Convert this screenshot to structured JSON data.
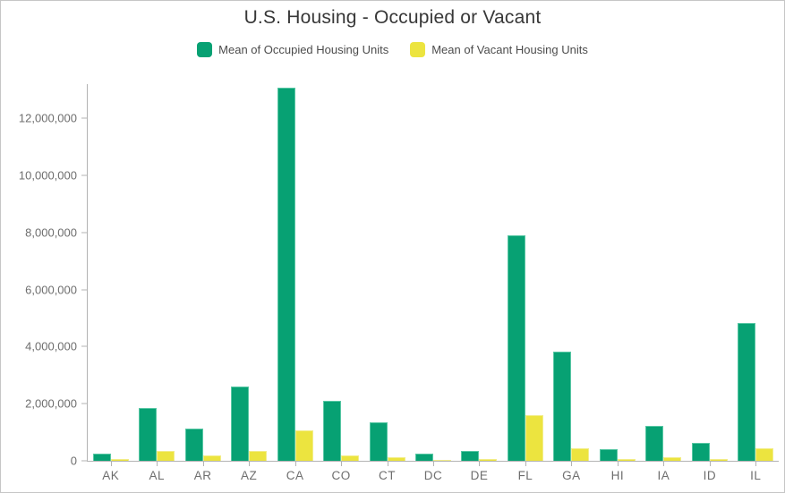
{
  "title": "U.S. Housing - Occupied or Vacant",
  "legend": [
    {
      "label": "Mean of Occupied Housing Units",
      "color": "#07a173"
    },
    {
      "label": "Mean of Vacant Housing Units",
      "color": "#ece43f"
    }
  ],
  "colors": {
    "occupied_green": "#07a173",
    "vacant_yellow": "#ece43f",
    "axis_line": "#b3b3b3",
    "axis_label_text": "#6e6e6e",
    "title_text": "#383838",
    "legend_text": "#4c4c4c",
    "background": "#ffffff"
  },
  "chart_data": {
    "type": "bar",
    "title": "U.S. Housing - Occupied or Vacant",
    "xlabel": "",
    "ylabel": "",
    "grid": false,
    "legend_position": "top-center",
    "categories": [
      "AK",
      "AL",
      "AR",
      "AZ",
      "CA",
      "CO",
      "CT",
      "DC",
      "DE",
      "FL",
      "GA",
      "HI",
      "IA",
      "ID",
      "IL"
    ],
    "series": [
      {
        "name": "Mean of Occupied Housing Units",
        "color": "#07a173",
        "values": [
          240000,
          1850000,
          1120000,
          2600000,
          13070000,
          2090000,
          1360000,
          250000,
          340000,
          7890000,
          3810000,
          420000,
          1230000,
          630000,
          4840000
        ]
      },
      {
        "name": "Mean of Vacant Housing Units",
        "color": "#ece43f",
        "values": [
          70000,
          360000,
          180000,
          360000,
          1080000,
          200000,
          120000,
          30000,
          60000,
          1590000,
          440000,
          60000,
          140000,
          70000,
          440000
        ]
      }
    ],
    "ylim": [
      0,
      13200000
    ],
    "yticks": [
      0,
      2000000,
      4000000,
      6000000,
      8000000,
      10000000,
      12000000
    ],
    "ytick_labels": [
      "0",
      "2,000,000",
      "4,000,000",
      "6,000,000",
      "8,000,000",
      "10,000,000",
      "12,000,000"
    ]
  }
}
